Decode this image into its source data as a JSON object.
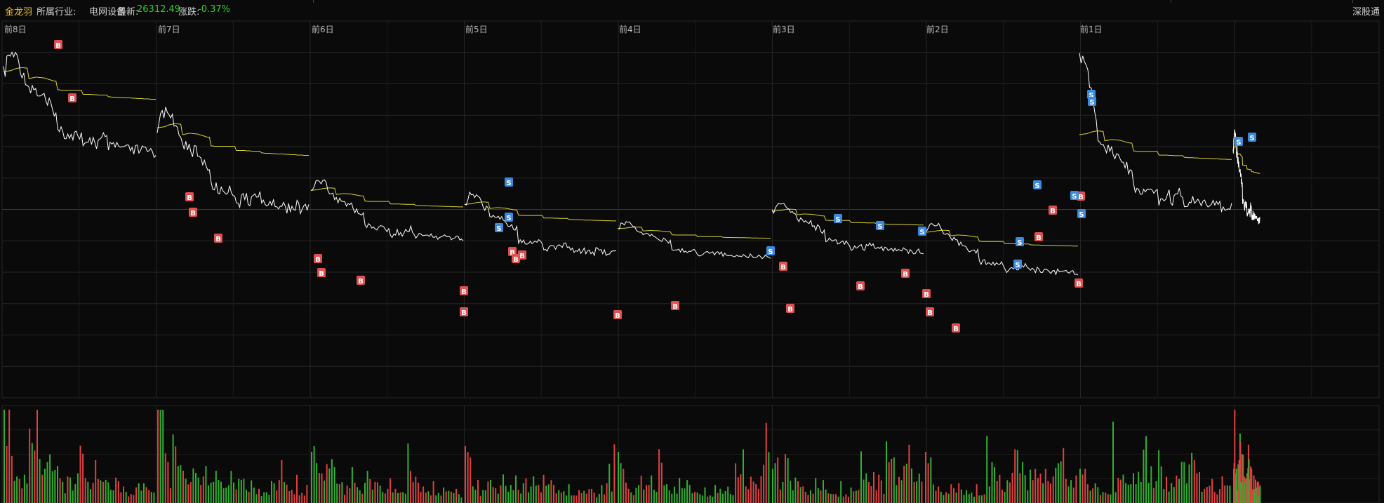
{
  "header": {
    "stock_name": "金龙羽",
    "industry_label": "所属行业:",
    "industry_value": "电网设备",
    "latest_label": "最新:",
    "latest_value": "26312.49",
    "change_label": "涨跌:",
    "change_value": "-0.37%",
    "market_tag": "深股通"
  },
  "colors": {
    "background": "#0a0a0a",
    "grid": "#262626",
    "price_line": "#ffffff",
    "avg_line": "#d8d030",
    "volume_up": "#e04040",
    "volume_down": "#30b030",
    "buy_marker": "#e05050",
    "sell_marker": "#3a8ae0",
    "name_color": "#f0c030",
    "down_color": "#33cc33"
  },
  "chart_data": {
    "type": "line",
    "day_labels": [
      "前8日",
      "前7日",
      "前6日",
      "前5日",
      "前4日",
      "前3日",
      "前2日",
      "前1日"
    ],
    "series": [
      {
        "values": [
          [
            0,
            105
          ],
          [
            6,
            74
          ],
          [
            12,
            55
          ],
          [
            18,
            64
          ],
          [
            25,
            50
          ],
          [
            31,
            58
          ],
          [
            38,
            60
          ],
          [
            44,
            62
          ],
          [
            50,
            75
          ],
          [
            56,
            95
          ],
          [
            62,
            112
          ],
          [
            68,
            118
          ],
          [
            75,
            126
          ],
          [
            81,
            133
          ],
          [
            87,
            150
          ],
          [
            93,
            152
          ],
          [
            99,
            146
          ],
          [
            106,
            152
          ],
          [
            112,
            158
          ],
          [
            118,
            165
          ],
          [
            124,
            172
          ],
          [
            131,
            168
          ],
          [
            137,
            172
          ],
          [
            143,
            178
          ],
          [
            149,
            192
          ],
          [
            156,
            200
          ],
          [
            162,
            196
          ],
          [
            168,
            204
          ],
          [
            175,
            215
          ],
          [
            181,
            215
          ],
          [
            187,
            275
          ],
          [
            193,
            278
          ],
          [
            199,
            271
          ],
          [
            206,
            272
          ],
          [
            212,
            280
          ],
          [
            218,
            282
          ],
          [
            224,
            283
          ],
          [
            231,
            286
          ],
          [
            237,
            280
          ],
          [
            243,
            285
          ],
          [
            249,
            278
          ],
          [
            256,
            283
          ],
          [
            262,
            282
          ],
          [
            268,
            287
          ],
          [
            275,
            285
          ],
          [
            281,
            315
          ],
          [
            287,
            320
          ],
          [
            293,
            318
          ],
          [
            299,
            312
          ],
          [
            306,
            305
          ],
          [
            312,
            302
          ],
          [
            318,
            290
          ],
          [
            324,
            310
          ],
          [
            331,
            312
          ],
          [
            337,
            300
          ],
          [
            343,
            305
          ],
          [
            349,
            298
          ],
          [
            356,
            289
          ],
          [
            362,
            300
          ],
          [
            368,
            318
          ],
          [
            374,
            321
          ],
          [
            380,
            324
          ],
          [
            387,
            320
          ],
          [
            393,
            316
          ],
          [
            399,
            314
          ],
          [
            405,
            320
          ],
          [
            412,
            325
          ],
          [
            418,
            322
          ],
          [
            424,
            318
          ],
          [
            431,
            326
          ],
          [
            437,
            328
          ],
          [
            443,
            324
          ],
          [
            449,
            327
          ],
          [
            456,
            331
          ],
          [
            462,
            333
          ],
          [
            468,
            325
          ],
          [
            474,
            328
          ],
          [
            481,
            329
          ],
          [
            487,
            331
          ],
          [
            493,
            329
          ],
          [
            499,
            327
          ],
          [
            506,
            332
          ],
          [
            512,
            336
          ],
          [
            518,
            330
          ],
          [
            524,
            328
          ],
          [
            531,
            334
          ],
          [
            537,
            335
          ],
          [
            543,
            333
          ]
        ]
      },
      {
        "values": [
          [
            0,
            104
          ],
          [
            6,
            103
          ],
          [
            12,
            102
          ],
          [
            18,
            102
          ],
          [
            25,
            100
          ],
          [
            31,
            98
          ],
          [
            38,
            96
          ],
          [
            44,
            95
          ],
          [
            50,
            94
          ],
          [
            56,
            93
          ],
          [
            62,
            93
          ],
          [
            68,
            93
          ],
          [
            75,
            94
          ],
          [
            81,
            94
          ],
          [
            87,
            124
          ],
          [
            93,
            123
          ],
          [
            99,
            122
          ],
          [
            106,
            121
          ],
          [
            112,
            120
          ],
          [
            118,
            120
          ],
          [
            124,
            121
          ],
          [
            131,
            121
          ],
          [
            137,
            122
          ],
          [
            143,
            122
          ],
          [
            149,
            124
          ],
          [
            156,
            125
          ],
          [
            162,
            127
          ],
          [
            168,
            128
          ],
          [
            175,
            130
          ],
          [
            181,
            131
          ],
          [
            187,
            156
          ],
          [
            193,
            156
          ],
          [
            199,
            157
          ],
          [
            206,
            157
          ],
          [
            212,
            157
          ],
          [
            218,
            157
          ],
          [
            224,
            157
          ],
          [
            231,
            157
          ],
          [
            237,
            157
          ],
          [
            243,
            157
          ],
          [
            249,
            157
          ],
          [
            256,
            157
          ],
          [
            262,
            157
          ],
          [
            268,
            157
          ],
          [
            275,
            157
          ],
          [
            281,
            169
          ],
          [
            287,
            169
          ],
          [
            293,
            169
          ],
          [
            299,
            169
          ],
          [
            306,
            169
          ],
          [
            312,
            169
          ],
          [
            318,
            170
          ],
          [
            324,
            170
          ],
          [
            331,
            170
          ],
          [
            337,
            171
          ],
          [
            343,
            171
          ],
          [
            349,
            171
          ],
          [
            356,
            171
          ],
          [
            362,
            171
          ],
          [
            368,
            176
          ],
          [
            374,
            176
          ],
          [
            380,
            177
          ],
          [
            387,
            177
          ],
          [
            393,
            177
          ],
          [
            399,
            177
          ],
          [
            405,
            178
          ],
          [
            412,
            178
          ],
          [
            418,
            178
          ],
          [
            424,
            179
          ],
          [
            431,
            179
          ],
          [
            437,
            179
          ],
          [
            443,
            179
          ],
          [
            449,
            179
          ],
          [
            456,
            180
          ],
          [
            462,
            180
          ],
          [
            468,
            180
          ],
          [
            474,
            181
          ],
          [
            481,
            181
          ],
          [
            487,
            181
          ],
          [
            493,
            181
          ],
          [
            499,
            182
          ],
          [
            506,
            182
          ],
          [
            512,
            182
          ],
          [
            518,
            182
          ],
          [
            524,
            183
          ],
          [
            531,
            183
          ],
          [
            537,
            183
          ],
          [
            543,
            183
          ]
        ]
      }
    ],
    "volume": [
      52,
      20,
      40,
      38,
      22,
      24,
      18,
      20,
      30,
      16,
      42,
      38,
      70,
      52,
      28,
      26,
      20,
      38,
      36,
      34,
      22,
      30,
      18,
      20,
      14,
      28,
      22,
      24,
      26,
      28,
      32,
      34,
      28,
      20,
      18,
      16,
      24,
      14,
      20,
      14,
      18,
      12,
      12,
      16,
      18,
      14,
      12,
      14,
      16,
      10,
      10,
      12,
      10,
      16,
      12,
      12,
      14,
      16,
      12,
      14,
      38,
      26,
      20,
      16,
      18,
      14,
      18,
      14,
      16,
      12,
      14,
      14,
      16,
      12,
      12,
      14,
      12,
      12,
      10,
      12,
      12,
      10,
      14,
      12,
      14,
      10,
      12,
      14,
      12,
      14
    ],
    "buy_markers": [
      "B",
      "B",
      "B",
      "B",
      "B",
      "B",
      "B",
      "B",
      "B",
      "B",
      "B",
      "B",
      "B",
      "B",
      "B",
      "B",
      "B",
      "B",
      "B",
      "B",
      "B",
      "B",
      "B",
      "B",
      "B",
      "B"
    ],
    "sell_markers": [
      "S",
      "S",
      "S",
      "S",
      "S",
      "S",
      "S",
      "S",
      "S",
      "S",
      "S",
      "S",
      "S",
      "S",
      "S",
      "S"
    ]
  }
}
